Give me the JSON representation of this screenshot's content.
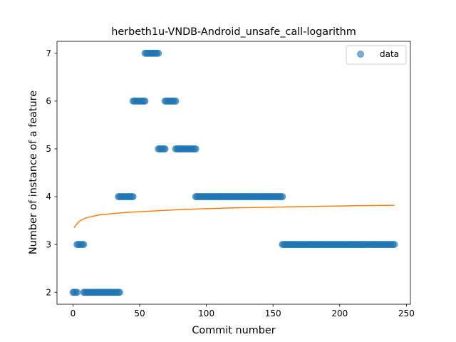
{
  "chart_data": {
    "type": "scatter",
    "title": "herbeth1u-VNDB-Android_unsafe_call-logarithm",
    "xlabel": "Commit number",
    "ylabel": "Number of instance of a feature",
    "xlim": [
      -12,
      253
    ],
    "ylim": [
      1.75,
      7.25
    ],
    "xticks": [
      0,
      50,
      100,
      150,
      200,
      250
    ],
    "yticks": [
      2,
      3,
      4,
      5,
      6,
      7
    ],
    "legend": {
      "placement": "top-right",
      "entries": [
        "data"
      ]
    },
    "colors": {
      "data": "#1f77b4",
      "fit": "#ff7f0e"
    },
    "grid": false,
    "series": [
      {
        "name": "data",
        "kind": "scatter",
        "segments": [
          {
            "x_start": 0,
            "x_end": 3,
            "y": 2
          },
          {
            "x_start": 3,
            "x_end": 8,
            "y": 3
          },
          {
            "x_start": 8,
            "x_end": 35,
            "y": 2
          },
          {
            "x_start": 34,
            "x_end": 45,
            "y": 4
          },
          {
            "x_start": 45,
            "x_end": 54,
            "y": 6
          },
          {
            "x_start": 54,
            "x_end": 64,
            "y": 7
          },
          {
            "x_start": 64,
            "x_end": 69,
            "y": 5
          },
          {
            "x_start": 69,
            "x_end": 77,
            "y": 6
          },
          {
            "x_start": 77,
            "x_end": 92,
            "y": 5
          },
          {
            "x_start": 92,
            "x_end": 157,
            "y": 4
          },
          {
            "x_start": 157,
            "x_end": 241,
            "y": 3
          }
        ]
      },
      {
        "kind": "line",
        "model": "logarithm",
        "x": [
          1,
          2,
          5,
          10,
          20,
          40,
          60,
          80,
          100,
          120,
          150,
          180,
          200,
          220,
          241
        ],
        "y": [
          3.35,
          3.4,
          3.49,
          3.56,
          3.62,
          3.67,
          3.7,
          3.73,
          3.75,
          3.765,
          3.78,
          3.795,
          3.805,
          3.815,
          3.82
        ]
      }
    ]
  }
}
